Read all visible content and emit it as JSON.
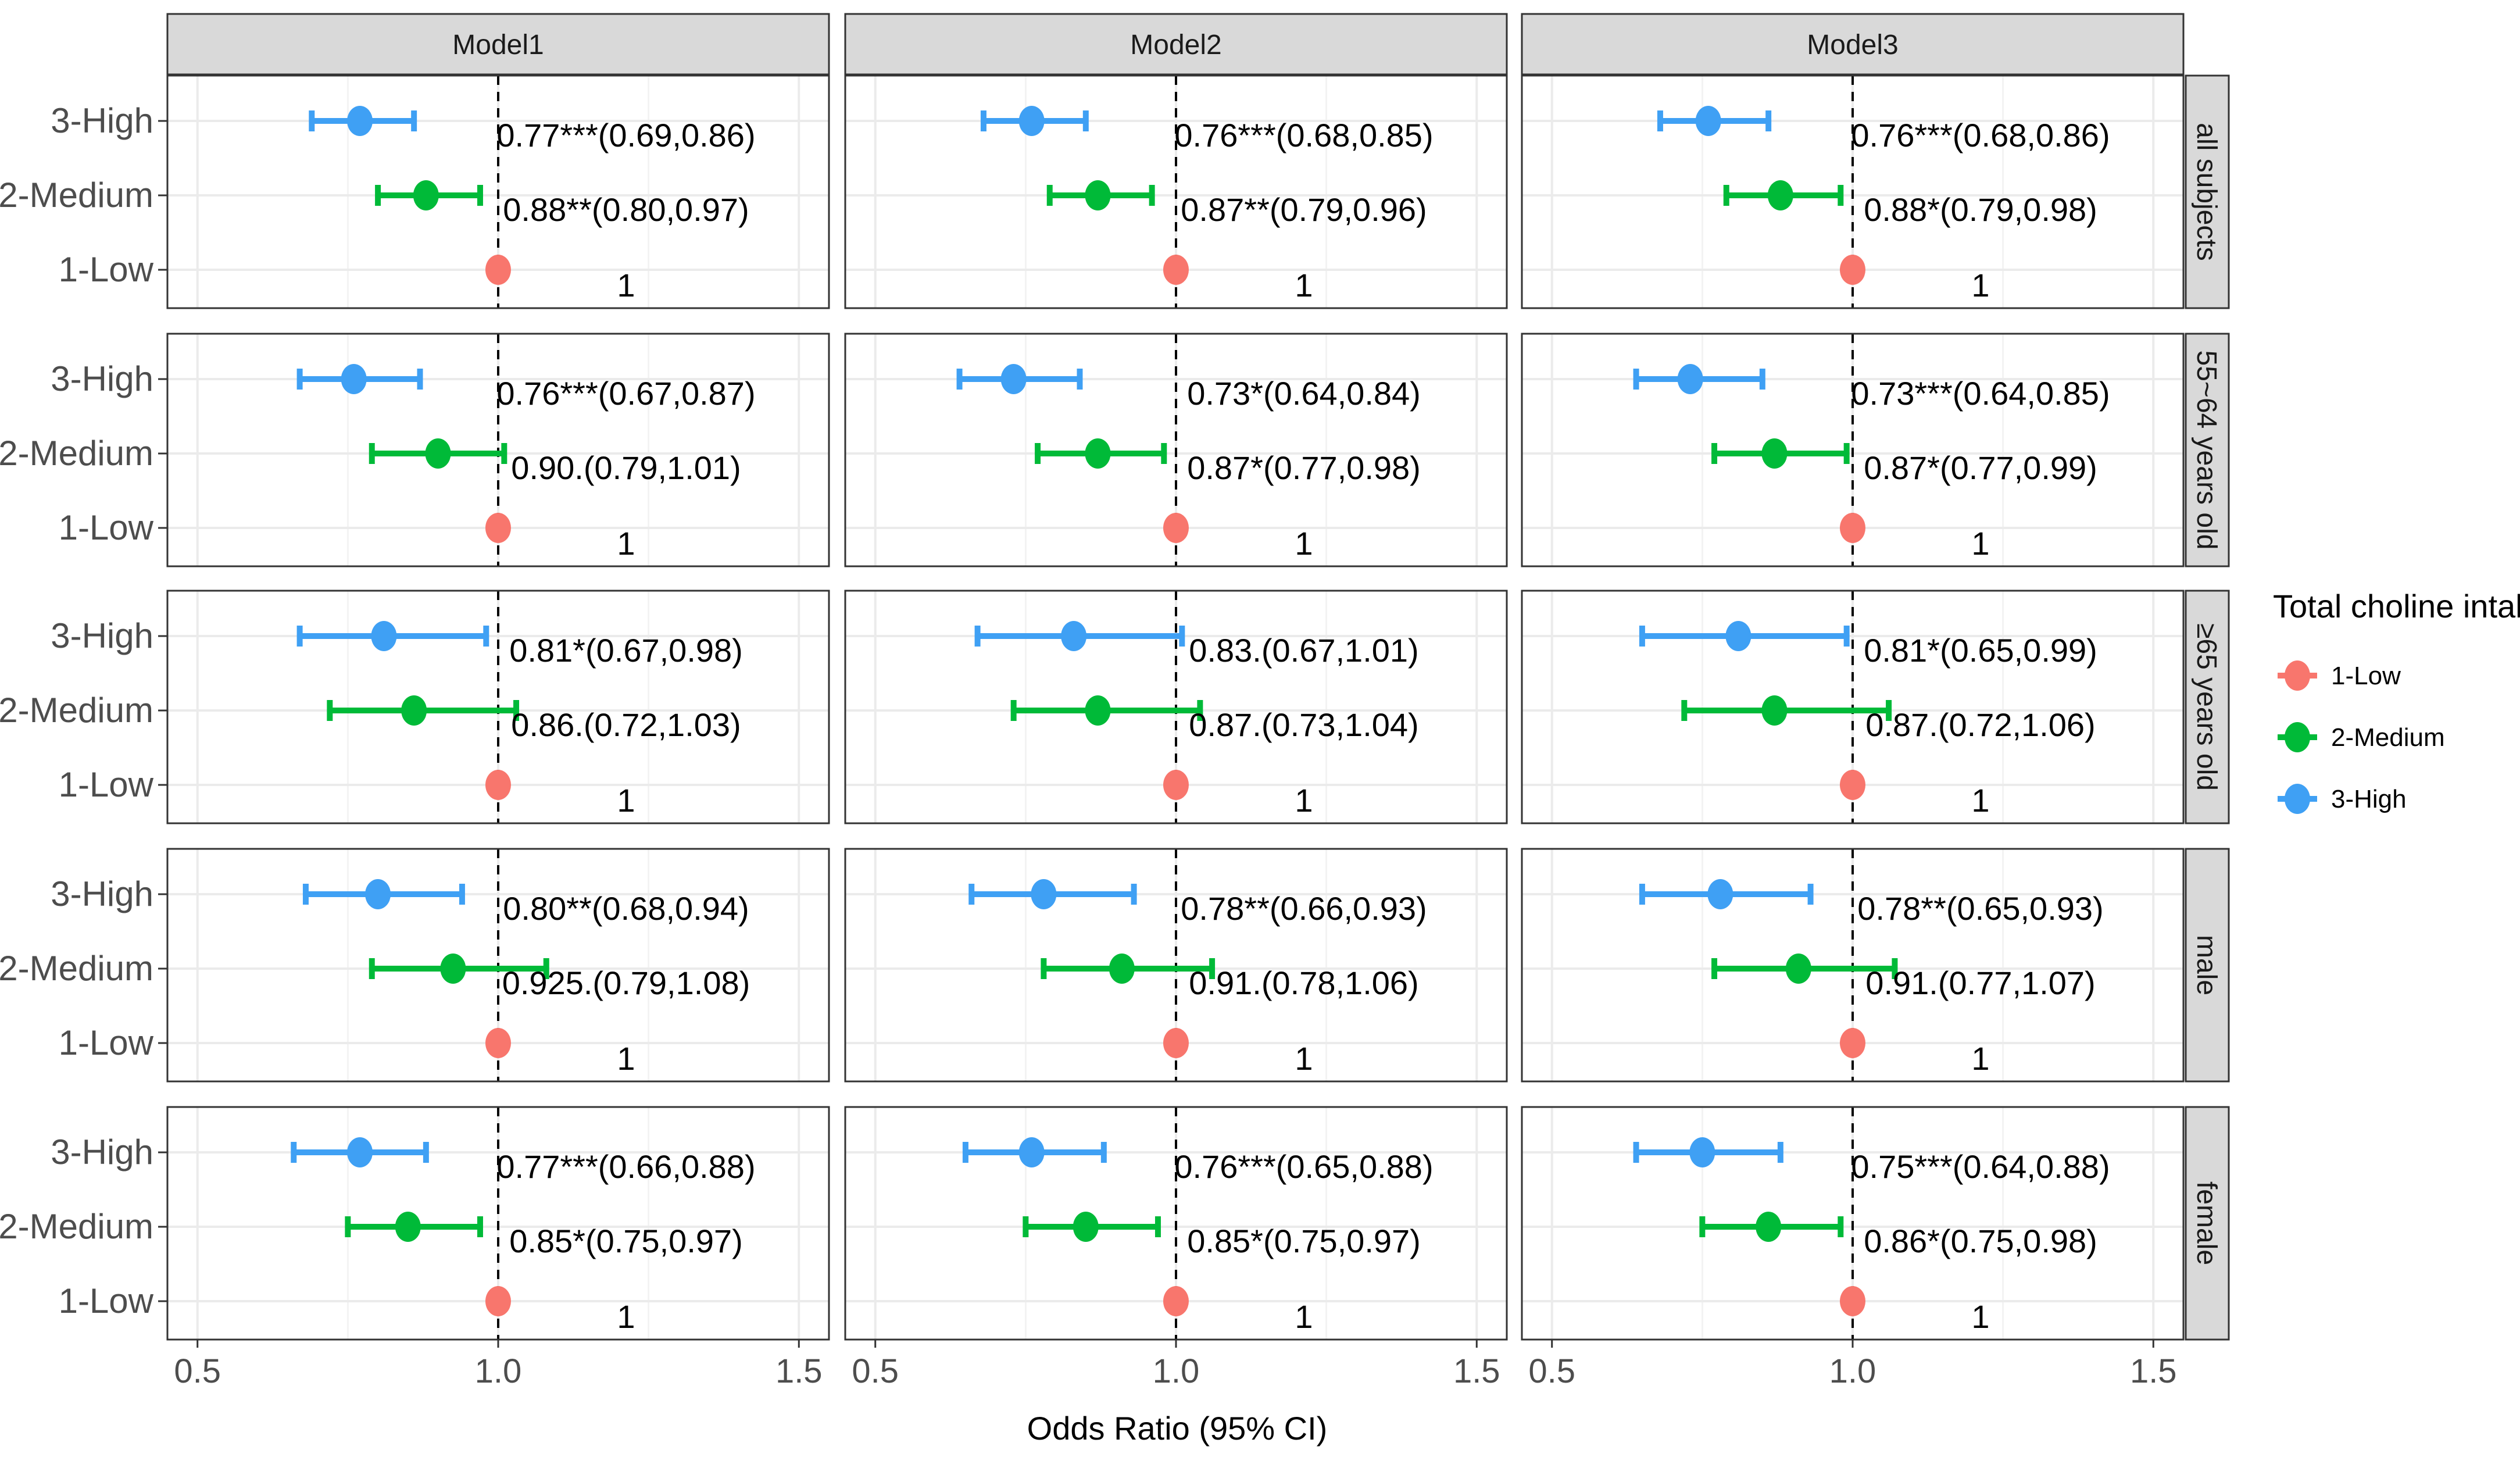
{
  "chart_data": {
    "type": "forest",
    "xlabel": "Odds Ratio (95% CI)",
    "xlim": [
      0.45,
      1.55
    ],
    "x_ticks": [
      0.5,
      1.0,
      1.5
    ],
    "x_tick_labels": [
      "0.5",
      "1.0",
      "1.5"
    ],
    "reference_line": 1.0,
    "categories": [
      "3-High",
      "2-Medium",
      "1-Low"
    ],
    "models": [
      "Model1",
      "Model2",
      "Model3"
    ],
    "subgroups": [
      "all subjects",
      "55~64 years old",
      "≥65 years old",
      "male",
      "female"
    ],
    "legend": {
      "title": "Total choline intake",
      "position": "right",
      "items": [
        {
          "label": "1-Low",
          "color": "#F8766D"
        },
        {
          "label": "2-Medium",
          "color": "#00BA38"
        },
        {
          "label": "3-High",
          "color": "#3FA0F4"
        }
      ]
    },
    "colors": {
      "1-Low": "#F8766D",
      "2-Medium": "#00BA38",
      "3-High": "#3FA0F4"
    },
    "panels": [
      {
        "row": 0,
        "col": 0,
        "points": [
          {
            "category": "3-High",
            "or": 0.77,
            "lo": 0.69,
            "hi": 0.86,
            "label": "0.77***(0.69,0.86)"
          },
          {
            "category": "2-Medium",
            "or": 0.88,
            "lo": 0.8,
            "hi": 0.97,
            "label": "0.88**(0.80,0.97)"
          },
          {
            "category": "1-Low",
            "or": 1.0,
            "label": "1"
          }
        ]
      },
      {
        "row": 0,
        "col": 1,
        "points": [
          {
            "category": "3-High",
            "or": 0.76,
            "lo": 0.68,
            "hi": 0.85,
            "label": "0.76***(0.68,0.85)"
          },
          {
            "category": "2-Medium",
            "or": 0.87,
            "lo": 0.79,
            "hi": 0.96,
            "label": "0.87**(0.79,0.96)"
          },
          {
            "category": "1-Low",
            "or": 1.0,
            "label": "1"
          }
        ]
      },
      {
        "row": 0,
        "col": 2,
        "points": [
          {
            "category": "3-High",
            "or": 0.76,
            "lo": 0.68,
            "hi": 0.86,
            "label": "0.76***(0.68,0.86)"
          },
          {
            "category": "2-Medium",
            "or": 0.88,
            "lo": 0.79,
            "hi": 0.98,
            "label": "0.88*(0.79,0.98)"
          },
          {
            "category": "1-Low",
            "or": 1.0,
            "label": "1"
          }
        ]
      },
      {
        "row": 1,
        "col": 0,
        "points": [
          {
            "category": "3-High",
            "or": 0.76,
            "lo": 0.67,
            "hi": 0.87,
            "label": "0.76***(0.67,0.87)"
          },
          {
            "category": "2-Medium",
            "or": 0.9,
            "lo": 0.79,
            "hi": 1.01,
            "label": "0.90.(0.79,1.01)"
          },
          {
            "category": "1-Low",
            "or": 1.0,
            "label": "1"
          }
        ]
      },
      {
        "row": 1,
        "col": 1,
        "points": [
          {
            "category": "3-High",
            "or": 0.73,
            "lo": 0.64,
            "hi": 0.84,
            "label": "0.73*(0.64,0.84)"
          },
          {
            "category": "2-Medium",
            "or": 0.87,
            "lo": 0.77,
            "hi": 0.98,
            "label": "0.87*(0.77,0.98)"
          },
          {
            "category": "1-Low",
            "or": 1.0,
            "label": "1"
          }
        ]
      },
      {
        "row": 1,
        "col": 2,
        "points": [
          {
            "category": "3-High",
            "or": 0.73,
            "lo": 0.64,
            "hi": 0.85,
            "label": "0.73***(0.64,0.85)"
          },
          {
            "category": "2-Medium",
            "or": 0.87,
            "lo": 0.77,
            "hi": 0.99,
            "label": "0.87*(0.77,0.99)"
          },
          {
            "category": "1-Low",
            "or": 1.0,
            "label": "1"
          }
        ]
      },
      {
        "row": 2,
        "col": 0,
        "points": [
          {
            "category": "3-High",
            "or": 0.81,
            "lo": 0.67,
            "hi": 0.98,
            "label": "0.81*(0.67,0.98)"
          },
          {
            "category": "2-Medium",
            "or": 0.86,
            "lo": 0.72,
            "hi": 1.03,
            "label": "0.86.(0.72,1.03)"
          },
          {
            "category": "1-Low",
            "or": 1.0,
            "label": "1"
          }
        ]
      },
      {
        "row": 2,
        "col": 1,
        "points": [
          {
            "category": "3-High",
            "or": 0.83,
            "lo": 0.67,
            "hi": 1.01,
            "label": "0.83.(0.67,1.01)"
          },
          {
            "category": "2-Medium",
            "or": 0.87,
            "lo": 0.73,
            "hi": 1.04,
            "label": "0.87.(0.73,1.04)"
          },
          {
            "category": "1-Low",
            "or": 1.0,
            "label": "1"
          }
        ]
      },
      {
        "row": 2,
        "col": 2,
        "points": [
          {
            "category": "3-High",
            "or": 0.81,
            "lo": 0.65,
            "hi": 0.99,
            "label": "0.81*(0.65,0.99)"
          },
          {
            "category": "2-Medium",
            "or": 0.87,
            "lo": 0.72,
            "hi": 1.06,
            "label": "0.87.(0.72,1.06)"
          },
          {
            "category": "1-Low",
            "or": 1.0,
            "label": "1"
          }
        ]
      },
      {
        "row": 3,
        "col": 0,
        "points": [
          {
            "category": "3-High",
            "or": 0.8,
            "lo": 0.68,
            "hi": 0.94,
            "label": "0.80**(0.68,0.94)"
          },
          {
            "category": "2-Medium",
            "or": 0.925,
            "lo": 0.79,
            "hi": 1.08,
            "label": "0.925.(0.79,1.08)"
          },
          {
            "category": "1-Low",
            "or": 1.0,
            "label": "1"
          }
        ]
      },
      {
        "row": 3,
        "col": 1,
        "points": [
          {
            "category": "3-High",
            "or": 0.78,
            "lo": 0.66,
            "hi": 0.93,
            "label": "0.78**(0.66,0.93)"
          },
          {
            "category": "2-Medium",
            "or": 0.91,
            "lo": 0.78,
            "hi": 1.06,
            "label": "0.91.(0.78,1.06)"
          },
          {
            "category": "1-Low",
            "or": 1.0,
            "label": "1"
          }
        ]
      },
      {
        "row": 3,
        "col": 2,
        "points": [
          {
            "category": "3-High",
            "or": 0.78,
            "lo": 0.65,
            "hi": 0.93,
            "label": "0.78**(0.65,0.93)"
          },
          {
            "category": "2-Medium",
            "or": 0.91,
            "lo": 0.77,
            "hi": 1.07,
            "label": "0.91.(0.77,1.07)"
          },
          {
            "category": "1-Low",
            "or": 1.0,
            "label": "1"
          }
        ]
      },
      {
        "row": 4,
        "col": 0,
        "points": [
          {
            "category": "3-High",
            "or": 0.77,
            "lo": 0.66,
            "hi": 0.88,
            "label": "0.77***(0.66,0.88)"
          },
          {
            "category": "2-Medium",
            "or": 0.85,
            "lo": 0.75,
            "hi": 0.97,
            "label": "0.85*(0.75,0.97)"
          },
          {
            "category": "1-Low",
            "or": 1.0,
            "label": "1"
          }
        ]
      },
      {
        "row": 4,
        "col": 1,
        "points": [
          {
            "category": "3-High",
            "or": 0.76,
            "lo": 0.65,
            "hi": 0.88,
            "label": "0.76***(0.65,0.88)"
          },
          {
            "category": "2-Medium",
            "or": 0.85,
            "lo": 0.75,
            "hi": 0.97,
            "label": "0.85*(0.75,0.97)"
          },
          {
            "category": "1-Low",
            "or": 1.0,
            "label": "1"
          }
        ]
      },
      {
        "row": 4,
        "col": 2,
        "points": [
          {
            "category": "3-High",
            "or": 0.75,
            "lo": 0.64,
            "hi": 0.88,
            "label": "0.75***(0.64,0.88)"
          },
          {
            "category": "2-Medium",
            "or": 0.86,
            "lo": 0.75,
            "hi": 0.98,
            "label": "0.86*(0.75,0.98)"
          },
          {
            "category": "1-Low",
            "or": 1.0,
            "label": "1"
          }
        ]
      }
    ]
  }
}
